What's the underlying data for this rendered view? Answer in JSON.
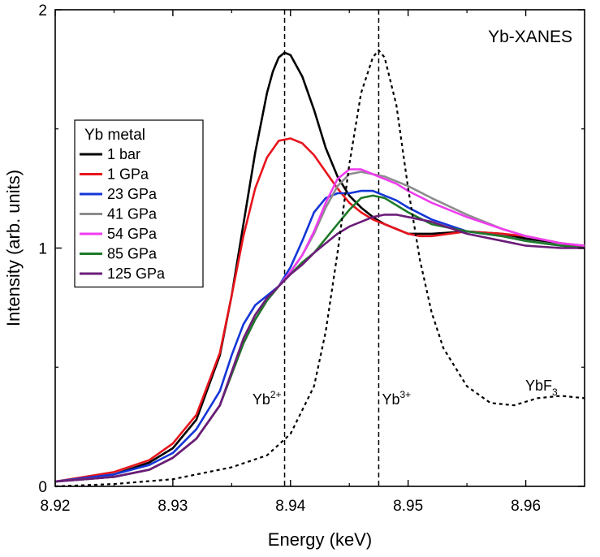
{
  "chart_data": {
    "type": "line",
    "title": "Yb-XANES",
    "xlabel": "Energy (keV)",
    "ylabel": "Intensity (arb. units)",
    "xlim": [
      8.92,
      8.965
    ],
    "ylim": [
      0,
      2
    ],
    "xticks": [
      8.92,
      8.93,
      8.94,
      8.95,
      8.96
    ],
    "xtick_labels": [
      "8.92",
      "8.93",
      "8.94",
      "8.95",
      "8.96"
    ],
    "yticks": [
      0,
      1,
      2
    ],
    "ytick_labels": [
      "0",
      "1",
      "2"
    ],
    "grid": false,
    "legend": {
      "title": "Yb metal",
      "position": "left"
    },
    "series": [
      {
        "name": "1 bar",
        "color": "#000000",
        "x": [
          8.92,
          8.925,
          8.928,
          8.93,
          8.932,
          8.934,
          8.935,
          8.936,
          8.937,
          8.938,
          8.9385,
          8.939,
          8.9395,
          8.94,
          8.941,
          8.942,
          8.943,
          8.944,
          8.945,
          8.946,
          8.947,
          8.948,
          8.949,
          8.95,
          8.952,
          8.955,
          8.958,
          8.96,
          8.963,
          8.965
        ],
        "y": [
          0.02,
          0.05,
          0.1,
          0.16,
          0.28,
          0.55,
          0.8,
          1.1,
          1.4,
          1.65,
          1.74,
          1.8,
          1.82,
          1.81,
          1.72,
          1.58,
          1.42,
          1.3,
          1.22,
          1.17,
          1.13,
          1.1,
          1.08,
          1.06,
          1.06,
          1.07,
          1.06,
          1.04,
          1.02,
          1.0
        ]
      },
      {
        "name": "1 GPa",
        "color": "#e8141c",
        "x": [
          8.92,
          8.925,
          8.928,
          8.93,
          8.932,
          8.934,
          8.935,
          8.936,
          8.937,
          8.938,
          8.939,
          8.94,
          8.941,
          8.942,
          8.943,
          8.944,
          8.945,
          8.946,
          8.947,
          8.948,
          8.949,
          8.95,
          8.951,
          8.952,
          8.955,
          8.958,
          8.96,
          8.963,
          8.965
        ],
        "y": [
          0.02,
          0.06,
          0.11,
          0.18,
          0.3,
          0.56,
          0.8,
          1.05,
          1.25,
          1.38,
          1.45,
          1.46,
          1.44,
          1.39,
          1.32,
          1.25,
          1.19,
          1.15,
          1.12,
          1.1,
          1.08,
          1.06,
          1.05,
          1.05,
          1.07,
          1.06,
          1.05,
          1.02,
          1.0
        ]
      },
      {
        "name": "23 GPa",
        "color": "#1436d8",
        "x": [
          8.92,
          8.925,
          8.928,
          8.93,
          8.932,
          8.934,
          8.935,
          8.936,
          8.937,
          8.938,
          8.939,
          8.94,
          8.941,
          8.942,
          8.943,
          8.944,
          8.945,
          8.946,
          8.947,
          8.948,
          8.949,
          8.95,
          8.952,
          8.955,
          8.958,
          8.96,
          8.963,
          8.965
        ],
        "y": [
          0.02,
          0.05,
          0.09,
          0.14,
          0.24,
          0.4,
          0.55,
          0.68,
          0.76,
          0.8,
          0.84,
          0.92,
          1.03,
          1.15,
          1.21,
          1.23,
          1.23,
          1.24,
          1.24,
          1.22,
          1.2,
          1.17,
          1.12,
          1.07,
          1.05,
          1.03,
          1.01,
          1.0
        ]
      },
      {
        "name": "41 GPa",
        "color": "#8c8c8c",
        "x": [
          8.92,
          8.925,
          8.928,
          8.93,
          8.932,
          8.934,
          8.935,
          8.936,
          8.937,
          8.938,
          8.939,
          8.94,
          8.941,
          8.942,
          8.943,
          8.944,
          8.945,
          8.946,
          8.947,
          8.948,
          8.949,
          8.95,
          8.952,
          8.955,
          8.958,
          8.96,
          8.963,
          8.965
        ],
        "y": [
          0.02,
          0.04,
          0.07,
          0.12,
          0.2,
          0.34,
          0.47,
          0.6,
          0.7,
          0.78,
          0.84,
          0.9,
          0.97,
          1.06,
          1.17,
          1.26,
          1.31,
          1.32,
          1.31,
          1.3,
          1.28,
          1.26,
          1.21,
          1.14,
          1.08,
          1.05,
          1.02,
          1.01
        ]
      },
      {
        "name": "54 GPa",
        "color": "#ef3cef",
        "x": [
          8.92,
          8.925,
          8.928,
          8.93,
          8.932,
          8.934,
          8.935,
          8.936,
          8.937,
          8.938,
          8.939,
          8.94,
          8.941,
          8.942,
          8.943,
          8.944,
          8.945,
          8.946,
          8.947,
          8.948,
          8.949,
          8.95,
          8.952,
          8.955,
          8.958,
          8.96,
          8.963,
          8.965
        ],
        "y": [
          0.02,
          0.04,
          0.07,
          0.12,
          0.2,
          0.34,
          0.47,
          0.6,
          0.7,
          0.78,
          0.84,
          0.9,
          0.97,
          1.07,
          1.19,
          1.29,
          1.33,
          1.33,
          1.31,
          1.29,
          1.27,
          1.24,
          1.19,
          1.13,
          1.08,
          1.05,
          1.02,
          1.01
        ]
      },
      {
        "name": "85 GPa",
        "color": "#1e7a28",
        "x": [
          8.92,
          8.925,
          8.928,
          8.93,
          8.932,
          8.934,
          8.935,
          8.936,
          8.937,
          8.938,
          8.939,
          8.94,
          8.941,
          8.942,
          8.943,
          8.944,
          8.945,
          8.946,
          8.947,
          8.948,
          8.949,
          8.95,
          8.952,
          8.955,
          8.958,
          8.96,
          8.963,
          8.965
        ],
        "y": [
          0.02,
          0.04,
          0.07,
          0.12,
          0.2,
          0.34,
          0.47,
          0.6,
          0.7,
          0.78,
          0.84,
          0.89,
          0.94,
          0.98,
          1.04,
          1.1,
          1.16,
          1.21,
          1.22,
          1.21,
          1.18,
          1.15,
          1.1,
          1.07,
          1.05,
          1.03,
          1.01,
          1.0
        ]
      },
      {
        "name": "125 GPa",
        "color": "#6b1c78",
        "x": [
          8.92,
          8.925,
          8.928,
          8.93,
          8.932,
          8.934,
          8.935,
          8.936,
          8.937,
          8.938,
          8.939,
          8.94,
          8.941,
          8.942,
          8.943,
          8.944,
          8.945,
          8.946,
          8.947,
          8.948,
          8.949,
          8.95,
          8.952,
          8.955,
          8.958,
          8.96,
          8.963,
          8.965
        ],
        "y": [
          0.02,
          0.04,
          0.07,
          0.12,
          0.2,
          0.34,
          0.48,
          0.62,
          0.72,
          0.79,
          0.84,
          0.89,
          0.93,
          0.98,
          1.02,
          1.06,
          1.09,
          1.11,
          1.13,
          1.14,
          1.14,
          1.13,
          1.11,
          1.06,
          1.03,
          1.01,
          1.0,
          1.0
        ]
      },
      {
        "name": "YbF3",
        "color": "#000000",
        "dashed": true,
        "x": [
          8.92,
          8.925,
          8.93,
          8.935,
          8.938,
          8.94,
          8.942,
          8.943,
          8.944,
          8.945,
          8.946,
          8.947,
          8.9475,
          8.948,
          8.949,
          8.95,
          8.951,
          8.952,
          8.953,
          8.955,
          8.957,
          8.959,
          8.961,
          8.963,
          8.965
        ],
        "y": [
          0.0,
          0.01,
          0.03,
          0.08,
          0.13,
          0.22,
          0.42,
          0.65,
          0.98,
          1.35,
          1.65,
          1.8,
          1.83,
          1.8,
          1.6,
          1.25,
          0.95,
          0.73,
          0.58,
          0.42,
          0.35,
          0.34,
          0.37,
          0.38,
          0.37
        ]
      }
    ],
    "vlines": [
      {
        "x": 8.9395,
        "label_main": "Yb",
        "label_sup": "2+"
      },
      {
        "x": 8.9475,
        "label_main": "Yb",
        "label_sup": "3+"
      }
    ],
    "annotations": [
      {
        "text_main": "YbF",
        "text_sub": "3",
        "x": 8.961,
        "y": 0.34
      }
    ]
  }
}
